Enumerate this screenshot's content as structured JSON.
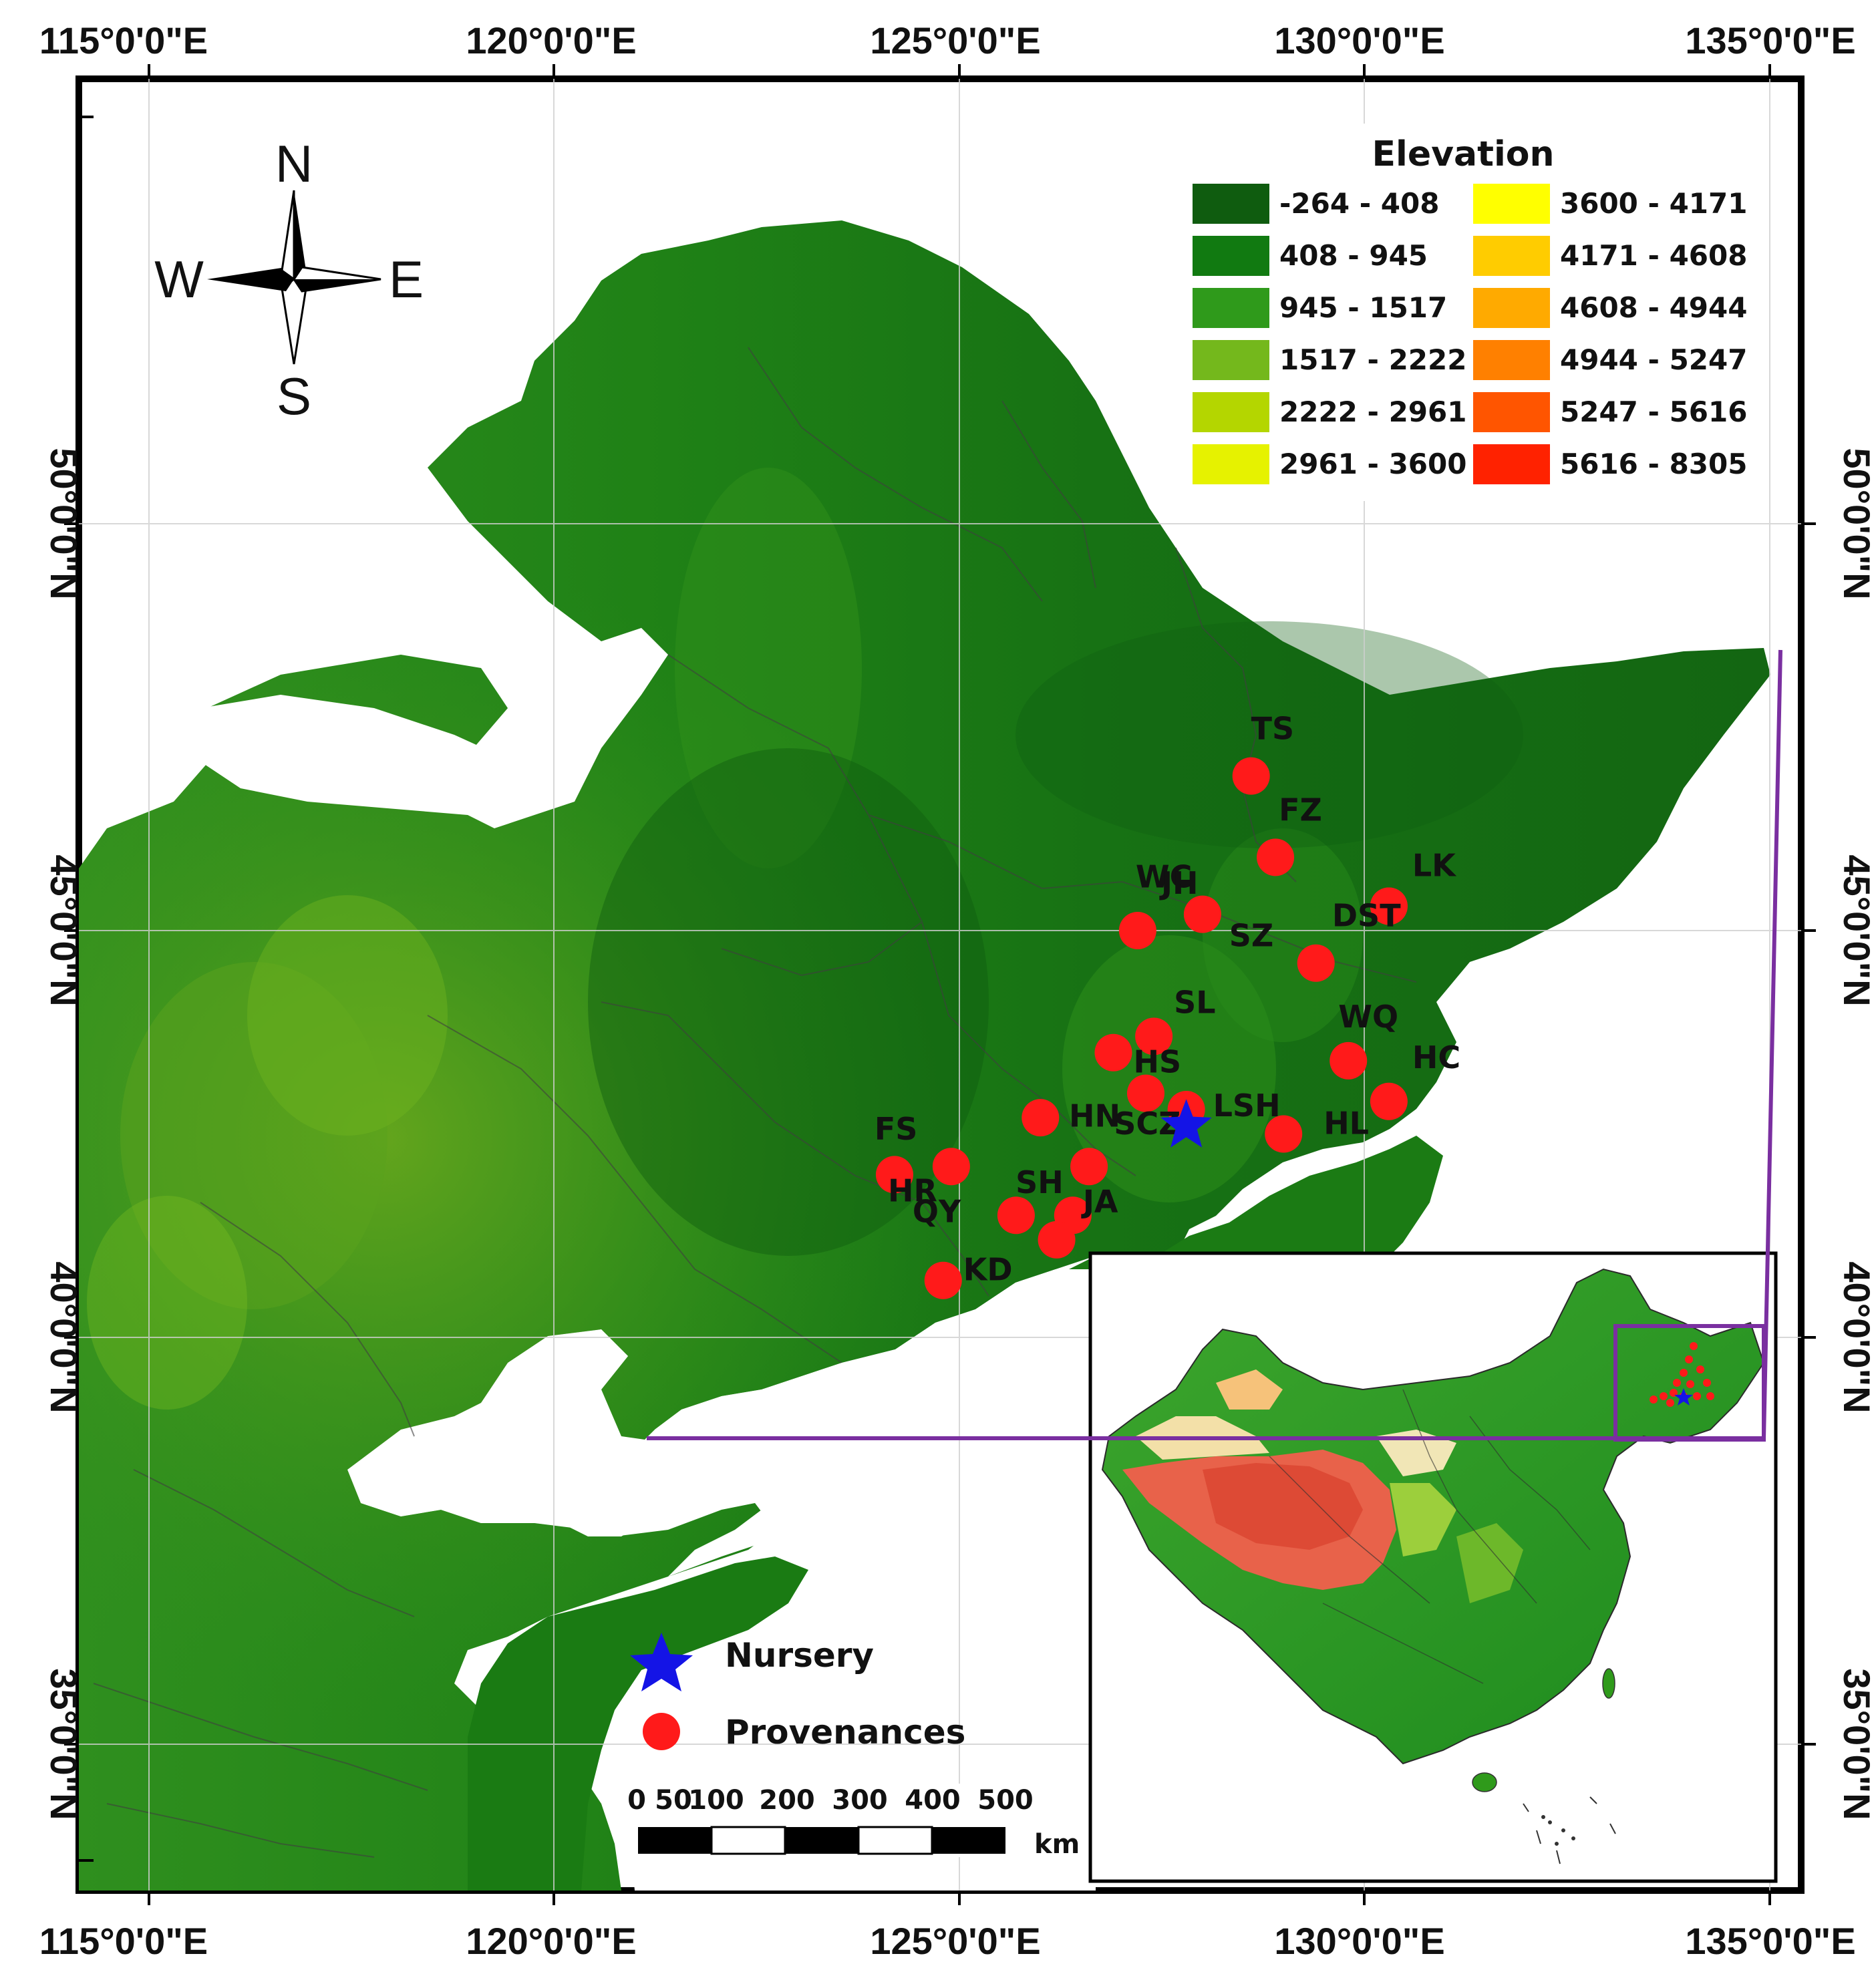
{
  "axes": {
    "top_labels": [
      "115°0'0\"E",
      "120°0'0\"E",
      "125°0'0\"E",
      "130°0'0\"E",
      "135°0'0\"E"
    ],
    "bottom_labels": [
      "115°0'0\"E",
      "120°0'0\"E",
      "125°0'0\"E",
      "130°0'0\"E",
      "135°0'0\"E"
    ],
    "left_labels": [
      "50°0'0\"N",
      "45°0'0\"N",
      "40°0'0\"N",
      "35°0'0\"N"
    ],
    "right_labels": [
      "50°0'0\"N",
      "45°0'0\"N",
      "40°0'0\"N",
      "35°0'0\"N"
    ]
  },
  "compass": {
    "north": "N",
    "south": "S",
    "east": "E",
    "west": "W"
  },
  "legend": {
    "title": "Elevation",
    "classes": [
      {
        "label": "-264 - 408",
        "color": "#0f5c0f"
      },
      {
        "label": "408 - 945",
        "color": "#117a11"
      },
      {
        "label": "945 - 1517",
        "color": "#2f9a1b"
      },
      {
        "label": "1517 - 2222",
        "color": "#74b81c"
      },
      {
        "label": "2222 - 2961",
        "color": "#b4d600"
      },
      {
        "label": "2961 - 3600",
        "color": "#e6f200"
      },
      {
        "label": "3600 - 4171",
        "color": "#ffff00"
      },
      {
        "label": "4171 - 4608",
        "color": "#ffcc00"
      },
      {
        "label": "4608 - 4944",
        "color": "#ffaa00"
      },
      {
        "label": "4944 - 5247",
        "color": "#ff8000"
      },
      {
        "label": "5247 - 5616",
        "color": "#ff5500"
      },
      {
        "label": "5616 - 8305",
        "color": "#ff2200"
      }
    ]
  },
  "provenances": [
    {
      "code": "TS",
      "lon": 128.6,
      "lat": 46.9
    },
    {
      "code": "FZ",
      "lon": 128.9,
      "lat": 45.9
    },
    {
      "code": "LK",
      "lon": 130.3,
      "lat": 45.3
    },
    {
      "code": "DST",
      "lon": 130.3,
      "lat": 45.3
    },
    {
      "code": "WC",
      "lon": 128.0,
      "lat": 45.2
    },
    {
      "code": "SZ",
      "lon": 129.4,
      "lat": 44.6
    },
    {
      "code": "JH",
      "lon": 127.2,
      "lat": 45.0
    },
    {
      "code": "SL",
      "lon": 127.4,
      "lat": 43.7
    },
    {
      "code": "HS",
      "lon": 126.9,
      "lat": 43.5
    },
    {
      "code": "WQ",
      "lon": 129.8,
      "lat": 43.4
    },
    {
      "code": "HC",
      "lon": 130.3,
      "lat": 42.9
    },
    {
      "code": "HN",
      "lon": 127.3,
      "lat": 43.0
    },
    {
      "code": "HL",
      "lon": 129.0,
      "lat": 42.5
    },
    {
      "code": "LSH",
      "lon": 127.8,
      "lat": 42.8
    },
    {
      "code": "SCZ",
      "lon": 126.0,
      "lat": 42.7
    },
    {
      "code": "FS",
      "lon": 124.9,
      "lat": 42.1
    },
    {
      "code": "HR",
      "lon": 124.2,
      "lat": 42.0
    },
    {
      "code": "SH",
      "lon": 126.6,
      "lat": 42.1
    },
    {
      "code": "QY",
      "lon": 125.7,
      "lat": 41.5
    },
    {
      "code": "JA",
      "lon": 126.4,
      "lat": 41.5
    },
    {
      "code": "KD",
      "lon": 124.8,
      "lat": 40.7
    },
    {
      "code": "",
      "lon": 126.2,
      "lat": 41.2
    }
  ],
  "nursery": {
    "lon": 127.8,
    "lat": 42.6
  },
  "key": {
    "nursery_label": "Nursery",
    "provenances_label": "Provenances"
  },
  "scale_bar": {
    "ticks": [
      "0",
      "50",
      "100",
      "200",
      "300",
      "400",
      "500"
    ],
    "unit": "km"
  }
}
